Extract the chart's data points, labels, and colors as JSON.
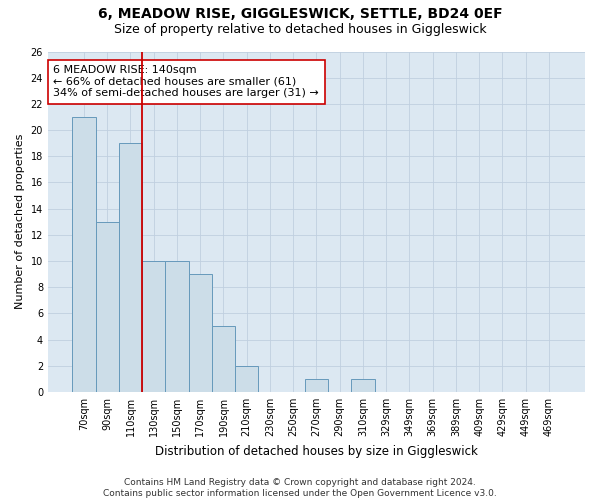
{
  "title": "6, MEADOW RISE, GIGGLESWICK, SETTLE, BD24 0EF",
  "subtitle": "Size of property relative to detached houses in Giggleswick",
  "xlabel": "Distribution of detached houses by size in Giggleswick",
  "ylabel": "Number of detached properties",
  "categories": [
    "70sqm",
    "90sqm",
    "110sqm",
    "130sqm",
    "150sqm",
    "170sqm",
    "190sqm",
    "210sqm",
    "230sqm",
    "250sqm",
    "270sqm",
    "290sqm",
    "310sqm",
    "329sqm",
    "349sqm",
    "369sqm",
    "389sqm",
    "409sqm",
    "429sqm",
    "449sqm",
    "469sqm"
  ],
  "values": [
    21,
    13,
    19,
    10,
    10,
    9,
    5,
    2,
    0,
    0,
    1,
    0,
    1,
    0,
    0,
    0,
    0,
    0,
    0,
    0,
    0
  ],
  "bar_color": "#ccdde8",
  "bar_edge_color": "#6699bb",
  "marker_line_color": "#cc0000",
  "annotation_line1": "6 MEADOW RISE: 140sqm",
  "annotation_line2": "← 66% of detached houses are smaller (61)",
  "annotation_line3": "34% of semi-detached houses are larger (31) →",
  "annotation_box_color": "#ffffff",
  "annotation_box_edge": "#cc0000",
  "ylim": [
    0,
    26
  ],
  "yticks": [
    0,
    2,
    4,
    6,
    8,
    10,
    12,
    14,
    16,
    18,
    20,
    22,
    24,
    26
  ],
  "grid_color": "#c0cfe0",
  "bg_color": "#dce8f2",
  "footer": "Contains HM Land Registry data © Crown copyright and database right 2024.\nContains public sector information licensed under the Open Government Licence v3.0.",
  "title_fontsize": 10,
  "subtitle_fontsize": 9,
  "xlabel_fontsize": 8.5,
  "ylabel_fontsize": 8,
  "tick_fontsize": 7,
  "annotation_fontsize": 8,
  "footer_fontsize": 6.5
}
